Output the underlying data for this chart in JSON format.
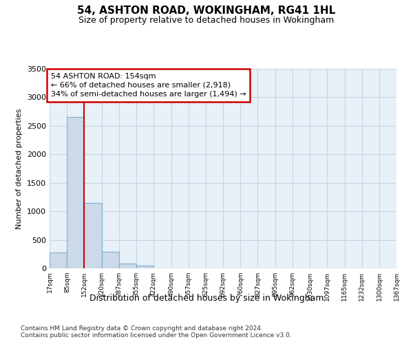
{
  "title1": "54, ASHTON ROAD, WOKINGHAM, RG41 1HL",
  "title2": "Size of property relative to detached houses in Wokingham",
  "xlabel": "Distribution of detached houses by size in Wokingham",
  "ylabel": "Number of detached properties",
  "footnote1": "Contains HM Land Registry data © Crown copyright and database right 2024.",
  "footnote2": "Contains public sector information licensed under the Open Government Licence v3.0.",
  "bar_values": [
    280,
    2650,
    1150,
    290,
    90,
    45,
    0,
    0,
    0,
    0,
    0,
    0,
    0,
    0,
    0,
    0,
    0,
    0,
    0,
    0
  ],
  "bin_edges": [
    17,
    85,
    152,
    220,
    287,
    355,
    422,
    490,
    557,
    625,
    692,
    760,
    827,
    895,
    962,
    1030,
    1097,
    1165,
    1232,
    1300,
    1367
  ],
  "x_tick_labels": [
    "17sqm",
    "85sqm",
    "152sqm",
    "220sqm",
    "287sqm",
    "355sqm",
    "422sqm",
    "490sqm",
    "557sqm",
    "625sqm",
    "692sqm",
    "760sqm",
    "827sqm",
    "895sqm",
    "962sqm",
    "1030sqm",
    "1097sqm",
    "1165sqm",
    "1232sqm",
    "1300sqm",
    "1367sqm"
  ],
  "bar_color": "#ccd9e8",
  "bar_edge_color": "#7bafd4",
  "grid_color": "#c5d5e5",
  "property_line_x": 152,
  "property_line_color": "#cc0000",
  "annotation_text": "54 ASHTON ROAD: 154sqm\n← 66% of detached houses are smaller (2,918)\n34% of semi-detached houses are larger (1,494) →",
  "annotation_box_color": "#ffffff",
  "annotation_box_edge": "#cc0000",
  "ylim": [
    0,
    3500
  ],
  "yticks": [
    0,
    500,
    1000,
    1500,
    2000,
    2500,
    3000,
    3500
  ],
  "background_color": "#ffffff",
  "plot_bg_color": "#e8f0f8"
}
